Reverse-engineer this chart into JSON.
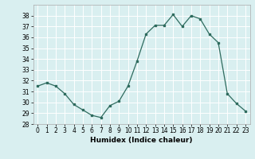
{
  "x": [
    0,
    1,
    2,
    3,
    4,
    5,
    6,
    7,
    8,
    9,
    10,
    11,
    12,
    13,
    14,
    15,
    16,
    17,
    18,
    19,
    20,
    21,
    22,
    23
  ],
  "y": [
    31.5,
    31.8,
    31.5,
    30.8,
    29.8,
    29.3,
    28.8,
    28.6,
    29.7,
    30.1,
    31.5,
    33.8,
    36.3,
    37.1,
    37.1,
    38.1,
    37.0,
    38.0,
    37.7,
    36.3,
    35.5,
    30.8,
    29.9,
    29.2
  ],
  "xlabel": "Humidex (Indice chaleur)",
  "ylim": [
    28,
    39
  ],
  "yticks": [
    28,
    29,
    30,
    31,
    32,
    33,
    34,
    35,
    36,
    37,
    38
  ],
  "xticks": [
    0,
    1,
    2,
    3,
    4,
    5,
    6,
    7,
    8,
    9,
    10,
    11,
    12,
    13,
    14,
    15,
    16,
    17,
    18,
    19,
    20,
    21,
    22,
    23
  ],
  "line_color": "#2e6b5e",
  "bg_color": "#d9eff0",
  "grid_color": "#ffffff",
  "xlabel_fontsize": 6.5,
  "tick_fontsize": 5.5
}
